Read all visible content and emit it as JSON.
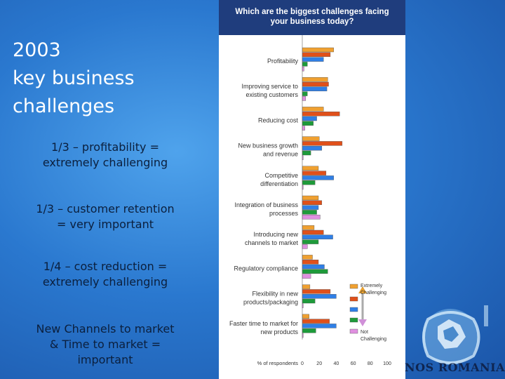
{
  "slide": {
    "title_lines": [
      "2003",
      "key business",
      "challenges"
    ],
    "bullets": [
      [
        "1/3 – profitability =",
        "extremely challenging"
      ],
      [
        "1/3 – customer retention",
        "= very important"
      ],
      [
        "1/4 – cost reduction =",
        "extremely challenging"
      ],
      [
        "New Channels to market",
        "& Time to market =",
        "important"
      ]
    ],
    "brand": "NOS ROMANIA",
    "colors": {
      "background": "#2a78cf",
      "header": "#1f3d7d",
      "series": [
        "#f0a030",
        "#e0501a",
        "#2f7fe6",
        "#1e9a3a",
        "#e090e0"
      ]
    }
  },
  "chart_data": {
    "type": "bar",
    "orientation": "horizontal",
    "title_lines": [
      "Which are the biggest challenges facing",
      "your business today?"
    ],
    "xlabel": "% of respondents",
    "xlim": [
      0,
      100
    ],
    "xticks": [
      0,
      20,
      40,
      60,
      80,
      100
    ],
    "categories": [
      [
        "Profitability"
      ],
      [
        "Improving service to",
        "existing customers"
      ],
      [
        "Reducing cost"
      ],
      [
        "New business growth",
        "and revenue"
      ],
      [
        "Competitive",
        "differentiation"
      ],
      [
        "Integration of business",
        "processes"
      ],
      [
        "Introducing new",
        "channels to market"
      ],
      [
        "Regulatory compliance"
      ],
      [
        "Flexibility in new",
        "products/packaging"
      ],
      [
        "Faster time to market for",
        "new products"
      ]
    ],
    "series": [
      {
        "values": [
          37,
          30,
          25,
          20,
          19,
          19,
          14,
          12,
          9,
          8
        ]
      },
      {
        "values": [
          33,
          31,
          44,
          47,
          28,
          23,
          25,
          19,
          33,
          32
        ]
      },
      {
        "values": [
          25,
          29,
          17,
          23,
          37,
          19,
          36,
          26,
          40,
          40
        ]
      },
      {
        "values": [
          6,
          6,
          13,
          10,
          15,
          17,
          19,
          30,
          15,
          16
        ]
      },
      {
        "values": [
          2,
          4,
          3,
          1,
          1,
          21,
          6,
          10,
          1,
          1
        ]
      }
    ],
    "legend": {
      "placement": "right",
      "top_label": [
        "Extremely",
        "Challenging"
      ],
      "bottom_label": [
        "Not",
        "Challenging"
      ]
    },
    "grid": false
  }
}
